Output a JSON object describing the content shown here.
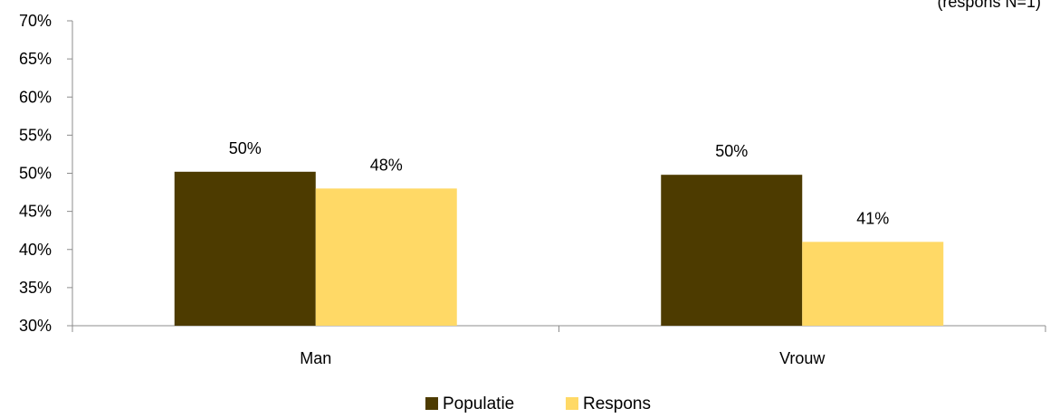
{
  "corner_note": "(respons N=1)",
  "chart_data": {
    "type": "bar",
    "categories": [
      "Man",
      "Vrouw"
    ],
    "series": [
      {
        "name": "Populatie",
        "values": [
          50.2,
          49.8
        ],
        "labels": [
          "50%",
          "50%"
        ]
      },
      {
        "name": "Respons",
        "values": [
          48,
          41
        ],
        "labels": [
          "48%",
          "41%"
        ]
      }
    ],
    "ylim": [
      30,
      70
    ],
    "yticks": [
      30,
      35,
      40,
      45,
      50,
      55,
      60,
      65,
      70
    ],
    "ytick_labels": [
      "30%",
      "35%",
      "40%",
      "45%",
      "50%",
      "55%",
      "60%",
      "65%",
      "70%"
    ],
    "legend": {
      "position": "bottom",
      "entries": [
        "Populatie",
        "Respons"
      ]
    },
    "grid": false,
    "colors": {
      "Populatie": "#4d3b00",
      "Respons": "#ffd966",
      "axis": "#8c8c8c"
    }
  }
}
